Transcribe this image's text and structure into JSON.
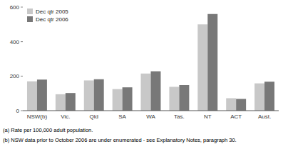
{
  "chart_data": {
    "type": "bar",
    "categories": [
      "NSW(b)",
      "Vic.",
      "Qld",
      "SA",
      "WA",
      "Tas.",
      "NT",
      "ACT",
      "Aust."
    ],
    "series": [
      {
        "name": "Dec qtr 2005",
        "color": "#c8c8c8",
        "values": [
          170,
          95,
          175,
          125,
          215,
          138,
          500,
          72,
          158
        ]
      },
      {
        "name": "Dec qtr 2006",
        "color": "#787878",
        "values": [
          180,
          102,
          182,
          135,
          228,
          148,
          560,
          68,
          168
        ]
      }
    ],
    "ylim": [
      0,
      600
    ],
    "yticks": [
      0,
      200,
      400,
      600
    ],
    "grid": false,
    "legend": "upper left",
    "annotations": [
      "(a) Rate per 100,000 adult population.",
      "(b) NSW data prior to October 2006 are under enumerated - see Explanatory Notes, paragraph 30."
    ]
  }
}
